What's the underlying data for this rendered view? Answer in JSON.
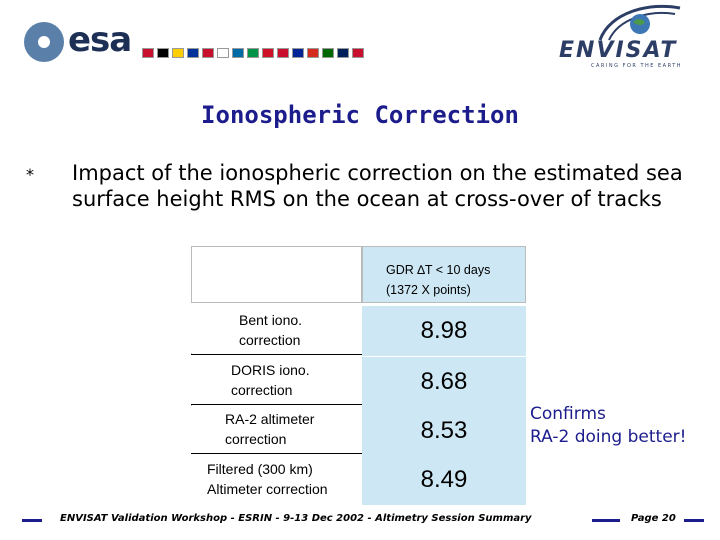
{
  "logos": {
    "esa_word": "esa",
    "envisat_word": "ENVISAT",
    "envisat_tagline": "CARING FOR THE EARTH",
    "flag_colors": [
      "#c8102e",
      "#000000",
      "#ffce00",
      "#003399",
      "#c8102e",
      "#ffffff",
      "#006aa7",
      "#009246",
      "#ce1126",
      "#c8102e",
      "#002395",
      "#d52b1e",
      "#006600",
      "#00205b",
      "#c8102e"
    ]
  },
  "slide": {
    "title": "Ionospheric Correction",
    "bullet_marker": "*",
    "bullet_text": "Impact of the ionospheric correction on the estimated sea surface height RMS on the ocean at cross-over of tracks"
  },
  "table": {
    "header_line1": "GDR ∆T < 10 days",
    "header_line2": "(1372 X points)",
    "rows": [
      {
        "label_line1": "Bent iono.",
        "label_line2": "correction",
        "value": "8.98"
      },
      {
        "label_line1": "DORIS iono.",
        "label_line2": "correction",
        "value": "8.68"
      },
      {
        "label_line1": "RA-2 altimeter",
        "label_line2": "correction",
        "value": "8.53"
      },
      {
        "label_line1": "Filtered (300 km)",
        "label_line2": "Altimeter correction",
        "value": "8.49"
      }
    ]
  },
  "note": {
    "line1": "Confirms",
    "line2": "RA-2 doing better!"
  },
  "footer": {
    "text": "ENVISAT Validation Workshop - ESRIN - 9-13 Dec 2002 - Altimetry Session Summary",
    "page": "Page 20"
  },
  "colors": {
    "title": "#1c1c8c",
    "cell_fill": "#cde8f4",
    "note": "#1c1c8c"
  }
}
